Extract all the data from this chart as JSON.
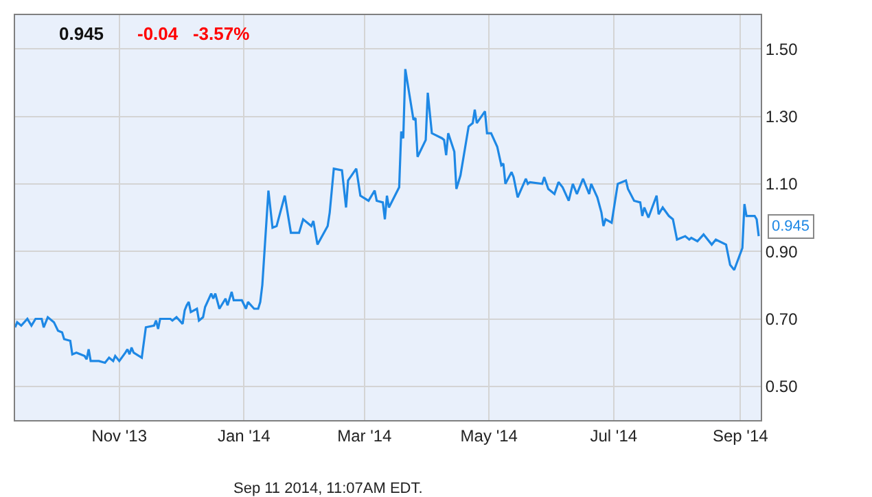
{
  "chart_data": {
    "type": "line",
    "title": "0.945",
    "subtitle": "-0.04   -3.57%",
    "x": [
      "2013-09-11",
      "2013-09-12",
      "2013-09-14",
      "2013-09-17",
      "2013-09-19",
      "2013-09-21",
      "2013-09-24",
      "2013-09-25",
      "2013-09-27",
      "2013-09-30",
      "2013-10-02",
      "2013-10-04",
      "2013-10-05",
      "2013-10-08",
      "2013-10-09",
      "2013-10-11",
      "2013-10-15",
      "2013-10-16",
      "2013-10-17",
      "2013-10-18",
      "2013-10-22",
      "2013-10-25",
      "2013-10-27",
      "2013-10-29",
      "2013-10-30",
      "2013-11-01",
      "2013-11-04",
      "2013-11-05",
      "2013-11-06",
      "2013-11-07",
      "2013-11-08",
      "2013-11-12",
      "2013-11-14",
      "2013-11-18",
      "2013-11-19",
      "2013-11-20",
      "2013-11-21",
      "2013-11-26",
      "2013-11-27",
      "2013-11-29",
      "2013-12-02",
      "2013-12-03",
      "2013-12-04",
      "2013-12-05",
      "2013-12-06",
      "2013-12-09",
      "2013-12-10",
      "2013-12-12",
      "2013-12-13",
      "2013-12-16",
      "2013-12-17",
      "2013-12-18",
      "2013-12-20",
      "2013-12-23",
      "2013-12-24",
      "2013-12-26",
      "2013-12-27",
      "2013-12-31",
      "2014-01-02",
      "2014-01-03",
      "2014-01-06",
      "2014-01-08",
      "2014-01-09",
      "2014-01-10",
      "2014-01-13",
      "2014-01-15",
      "2014-01-17",
      "2014-01-21",
      "2014-01-24",
      "2014-01-28",
      "2014-01-29",
      "2014-01-30",
      "2014-02-03",
      "2014-02-04",
      "2014-02-06",
      "2014-02-11",
      "2014-02-12",
      "2014-02-14",
      "2014-02-18",
      "2014-02-20",
      "2014-02-21",
      "2014-02-25",
      "2014-02-27",
      "2014-03-03",
      "2014-03-06",
      "2014-03-07",
      "2014-03-10",
      "2014-03-11",
      "2014-03-12",
      "2014-03-13",
      "2014-03-18",
      "2014-03-19",
      "2014-03-20",
      "2014-03-21",
      "2014-03-25",
      "2014-03-26",
      "2014-03-27",
      "2014-03-31",
      "2014-04-01",
      "2014-04-03",
      "2014-04-08",
      "2014-04-09",
      "2014-04-10",
      "2014-04-11",
      "2014-04-14",
      "2014-04-15",
      "2014-04-17",
      "2014-04-21",
      "2014-04-23",
      "2014-04-24",
      "2014-04-25",
      "2014-04-29",
      "2014-04-30",
      "2014-05-02",
      "2014-05-05",
      "2014-05-07",
      "2014-05-08",
      "2014-05-09",
      "2014-05-12",
      "2014-05-13",
      "2014-05-15",
      "2014-05-19",
      "2014-05-20",
      "2014-05-21",
      "2014-05-27",
      "2014-05-28",
      "2014-05-30",
      "2014-06-02",
      "2014-06-04",
      "2014-06-06",
      "2014-06-09",
      "2014-06-11",
      "2014-06-13",
      "2014-06-16",
      "2014-06-19",
      "2014-06-20",
      "2014-06-23",
      "2014-06-25",
      "2014-06-26",
      "2014-06-27",
      "2014-06-30",
      "2014-07-03",
      "2014-07-07",
      "2014-07-08",
      "2014-07-11",
      "2014-07-14",
      "2014-07-15",
      "2014-07-16",
      "2014-07-18",
      "2014-07-22",
      "2014-07-23",
      "2014-07-25",
      "2014-07-28",
      "2014-07-30",
      "2014-08-01",
      "2014-08-05",
      "2014-08-07",
      "2014-08-08",
      "2014-08-11",
      "2014-08-14",
      "2014-08-18",
      "2014-08-20",
      "2014-08-25",
      "2014-08-27",
      "2014-08-29",
      "2014-09-02",
      "2014-09-03",
      "2014-09-04",
      "2014-09-08",
      "2014-09-09",
      "2014-09-10"
    ],
    "series": [
      {
        "color": "#1e88e5",
        "values": [
          0.675,
          0.69,
          0.68,
          0.7,
          0.68,
          0.7,
          0.7,
          0.675,
          0.705,
          0.69,
          0.665,
          0.66,
          0.64,
          0.635,
          0.595,
          0.6,
          0.59,
          0.58,
          0.61,
          0.575,
          0.575,
          0.57,
          0.585,
          0.575,
          0.59,
          0.575,
          0.6,
          0.61,
          0.595,
          0.615,
          0.6,
          0.585,
          0.675,
          0.68,
          0.695,
          0.67,
          0.7,
          0.7,
          0.695,
          0.705,
          0.685,
          0.725,
          0.74,
          0.75,
          0.72,
          0.73,
          0.695,
          0.705,
          0.735,
          0.775,
          0.76,
          0.775,
          0.73,
          0.76,
          0.74,
          0.78,
          0.755,
          0.755,
          0.73,
          0.75,
          0.73,
          0.73,
          0.75,
          0.8,
          1.08,
          0.97,
          0.975,
          1.065,
          0.955,
          0.955,
          0.975,
          0.995,
          0.975,
          0.99,
          0.92,
          0.975,
          1.015,
          1.145,
          1.14,
          1.03,
          1.11,
          1.145,
          1.065,
          1.05,
          1.08,
          1.05,
          1.045,
          0.995,
          1.065,
          1.03,
          1.09,
          1.255,
          1.235,
          1.44,
          1.29,
          1.295,
          1.18,
          1.23,
          1.37,
          1.25,
          1.235,
          1.23,
          1.185,
          1.25,
          1.195,
          1.085,
          1.125,
          1.27,
          1.28,
          1.32,
          1.28,
          1.315,
          1.25,
          1.25,
          1.21,
          1.155,
          1.16,
          1.1,
          1.135,
          1.12,
          1.06,
          1.115,
          1.1,
          1.105,
          1.1,
          1.12,
          1.085,
          1.07,
          1.105,
          1.09,
          1.05,
          1.1,
          1.07,
          1.115,
          1.07,
          1.1,
          1.06,
          1.015,
          0.975,
          0.995,
          0.985,
          1.1,
          1.11,
          1.085,
          1.05,
          1.045,
          1.005,
          1.03,
          1.0,
          1.065,
          1.01,
          1.03,
          1.005,
          0.995,
          0.935,
          0.945,
          0.935,
          0.94,
          0.93,
          0.95,
          0.92,
          0.935,
          0.92,
          0.86,
          0.845,
          0.91,
          1.04,
          1.005,
          1.005,
          0.995,
          0.945
        ]
      }
    ],
    "xlim": [
      "2013-09-11",
      "2014-09-11"
    ],
    "xticks": [
      {
        "value": "2013-11-01",
        "label": "Nov '13"
      },
      {
        "value": "2014-01-01",
        "label": "Jan '14"
      },
      {
        "value": "2014-03-01",
        "label": "Mar '14"
      },
      {
        "value": "2014-05-01",
        "label": "May '14"
      },
      {
        "value": "2014-07-01",
        "label": "Jul '14"
      },
      {
        "value": "2014-09-01",
        "label": "Sep '14"
      }
    ],
    "ylim": [
      0.4,
      1.6
    ],
    "yticks": [
      {
        "value": 0.5,
        "label": "0.50"
      },
      {
        "value": 0.7,
        "label": "0.70"
      },
      {
        "value": 0.9,
        "label": "0.90"
      },
      {
        "value": 1.1,
        "label": "1.10"
      },
      {
        "value": 1.3,
        "label": "1.30"
      },
      {
        "value": 1.5,
        "label": "1.50"
      }
    ],
    "grid": true,
    "legend": false,
    "annotations": [
      {
        "text": "0.945",
        "x": "2014-09-10",
        "y": 0.945
      },
      "Sep 11 2014, 11:07AM EDT."
    ]
  }
}
